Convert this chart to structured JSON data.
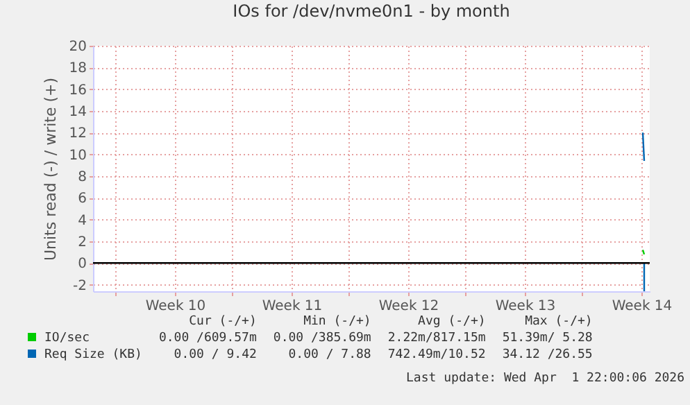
{
  "chart_data": {
    "type": "line",
    "title": "IOs for /dev/nvme0n1 - by month",
    "ylabel": "Units read (-) / write (+)",
    "xlim": [
      "2026-02-27T12:00",
      "2026-04-01T22:00"
    ],
    "xticks": [
      {
        "value": "2026-02-28T20:00",
        "label": null
      },
      {
        "value": "2026-03-04T10:00",
        "label": "Week 10"
      },
      {
        "value": "2026-03-07T20:00",
        "label": null
      },
      {
        "value": "2026-03-11T10:00",
        "label": "Week 11"
      },
      {
        "value": "2026-03-14T20:00",
        "label": null
      },
      {
        "value": "2026-03-18T10:00",
        "label": "Week 12"
      },
      {
        "value": "2026-03-21T20:00",
        "label": null
      },
      {
        "value": "2026-03-25T10:00",
        "label": "Week 13"
      },
      {
        "value": "2026-03-28T20:00",
        "label": null
      },
      {
        "value": "2026-04-01T10:00",
        "label": "Week 14"
      }
    ],
    "ylim": [
      -2.6,
      20
    ],
    "yticks": [
      -2,
      0,
      2,
      4,
      6,
      8,
      10,
      12,
      14,
      16,
      18,
      20
    ],
    "series": [
      {
        "name": "IO/sec",
        "color": "#00cc00",
        "x": [
          "2026-04-01T12:00",
          "2026-04-01T14:00"
        ],
        "values": [
          1.2,
          0.8
        ]
      },
      {
        "name": "Req Size (KB)",
        "color": "#0066b3",
        "x": [
          "2026-04-01T12:00",
          "2026-04-01T14:00"
        ],
        "values": [
          12,
          9.4
        ]
      },
      {
        "color": "#0066b3",
        "x": [
          "2026-04-01T14:00",
          "2026-04-01T14:00"
        ],
        "values": [
          0,
          -2.6
        ]
      }
    ],
    "ref_lines": [
      {
        "axis": "y",
        "value": 0,
        "color": "#000000"
      }
    ],
    "grid": true,
    "legend": "bottom",
    "line_style": "solid",
    "marker": "none",
    "annotations": [
      "Cur (-/+)",
      "Min (-/+)",
      "Avg (-/+)",
      "Max (-/+)",
      "0.00 /609.57m",
      "0.00 /385.69m",
      "2.22m/817.15m",
      "51.39m/ 5.28",
      "0.00 / 9.42",
      "0.00 / 7.88",
      "742.49m/10.52",
      "34.12 /26.55",
      "Last update: Wed Apr  1 22:00:06 2026"
    ]
  }
}
